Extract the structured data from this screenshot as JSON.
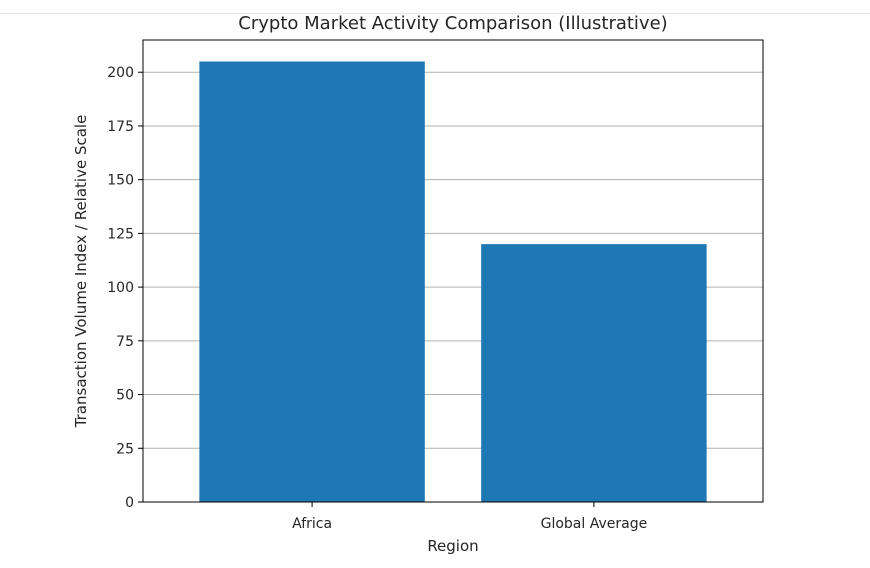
{
  "chart_data": {
    "type": "bar",
    "title": "Crypto Market Activity Comparison (Illustrative)",
    "xlabel": "Region",
    "ylabel": "Transaction Volume Index / Relative Scale",
    "categories": [
      "Africa",
      "Global Average"
    ],
    "values": [
      205,
      120
    ],
    "ylim": [
      0,
      215
    ],
    "yticks": [
      0,
      25,
      50,
      75,
      100,
      125,
      150,
      175,
      200
    ],
    "grid": "y-major",
    "bar_color": "#1f77b4",
    "grid_color": "#b0b0b0",
    "axis_color": "#000000"
  }
}
